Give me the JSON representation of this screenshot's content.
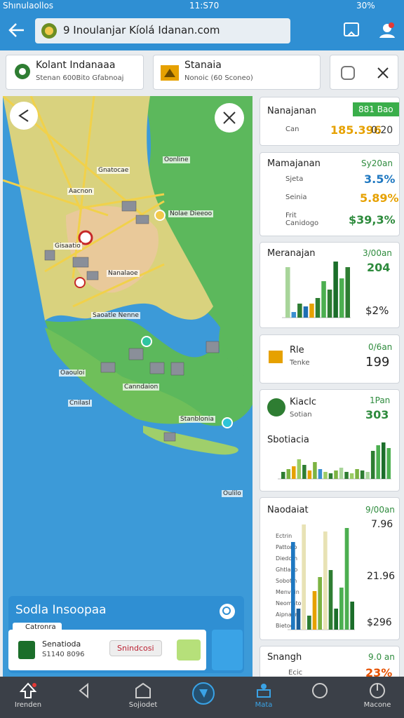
{
  "status": {
    "carrier": "Shınulaollos",
    "time": "11:S70",
    "battery": "30%"
  },
  "url": "9 Inoulanjar Kíolá Idanan.com",
  "cards": [
    {
      "title": "Kolant Indanaaa",
      "subtitle": "Stenan 600Bito Gfabnoaj"
    },
    {
      "title": "Stanaia",
      "subtitle": "Nonoic (60 Sconeo)"
    }
  ],
  "map": {
    "labels": [
      "Gnatocae",
      "Oonline",
      "Aacnon",
      "Nolae Dieeoo",
      "Gisaatio",
      "Nanalaoe",
      "Saoatle Nenne",
      "Oaouloi",
      "Canndaion",
      "Cnilasl",
      "Stanblonia",
      "Oulilo"
    ]
  },
  "panel": {
    "title": "Sodla Insoopaa",
    "tag": "Catronra",
    "item": "Senatioda",
    "detail": "S1140 8096",
    "button": "Snindcosi"
  },
  "side": [
    {
      "title": "Nanajanan",
      "badge": "881 Bao",
      "label": "Can",
      "value": "185.396",
      "note": "0.20"
    },
    {
      "title": "Mamajanan",
      "tag": "Sy20an",
      "rows": [
        {
          "label": "Sjeta",
          "value": "3.5%"
        },
        {
          "label": "Seinia",
          "value": "5.89%"
        },
        {
          "label": "Frit Canidogo",
          "value": "$39,3%"
        }
      ]
    },
    {
      "title": "Meranajan",
      "tag": "3/00an",
      "value": "204",
      "note": "$2%",
      "bars": {
        "values": [
          72,
          8,
          20,
          16,
          20,
          28,
          52,
          40,
          80,
          56,
          72
        ],
        "colors": [
          "#a8d59a",
          "#3a8fd0",
          "#2e7d32",
          "#1f6fb2",
          "#e6a100",
          "#2e7d32",
          "#4caf50",
          "#2e7d32",
          "#1b6e2a",
          "#4caf50",
          "#2e7d32"
        ]
      }
    },
    {
      "title": "Rle",
      "label": "Tenke",
      "tag": "0/6an",
      "value": "199"
    },
    {
      "title": "Kiaclc",
      "label": "Sotian",
      "tag": "1Pan",
      "value": "303",
      "chart": "Sbotiacia",
      "bars": {
        "values": [
          10,
          14,
          18,
          28,
          20,
          12,
          24,
          14,
          10,
          8,
          12,
          16,
          10,
          8,
          14,
          12,
          10,
          40,
          48,
          52,
          44
        ],
        "colors": [
          "#2e7d32",
          "#7cb342",
          "#e6a100",
          "#9ccc65",
          "#2e7d32",
          "#e6a100",
          "#7cb342",
          "#3a8fd0",
          "#9ccc65",
          "#2e7d32",
          "#7cb342",
          "#a8d59a",
          "#2e7d32",
          "#9ccc65",
          "#7cb342",
          "#2e7d32",
          "#a8d59a",
          "#2e7d32",
          "#4caf50",
          "#1b6e2a",
          "#4caf50"
        ]
      }
    },
    {
      "title": "Naodaiat",
      "tag": "9/00an",
      "values": [
        "7.96",
        "21.96",
        "$296"
      ],
      "legend": [
        "Ectrin",
        "Pattono",
        "Diedom",
        "Ghtlaoo",
        "Sobotin",
        "Menvoin",
        "Neomato",
        "Aipnaem",
        "Bietoo"
      ],
      "bars": {
        "values": [
          125,
          30,
          150,
          20,
          55,
          75,
          140,
          85,
          30,
          60,
          145,
          40
        ],
        "colors": [
          "#1f78c1",
          "#1b5e99",
          "#e8e2b5",
          "#2e7d32",
          "#e6a100",
          "#7cb342",
          "#e8e2b5",
          "#2e7d32",
          "#1b6e2a",
          "#4caf50",
          "#4caf50",
          "#1b6e2a"
        ]
      }
    },
    {
      "title": "Snangh",
      "label": "Ecic",
      "tag": "9.0 an",
      "value": "23%"
    }
  ],
  "nav": [
    "Irenden",
    "Sojiodet",
    "Mata",
    "Macone"
  ]
}
